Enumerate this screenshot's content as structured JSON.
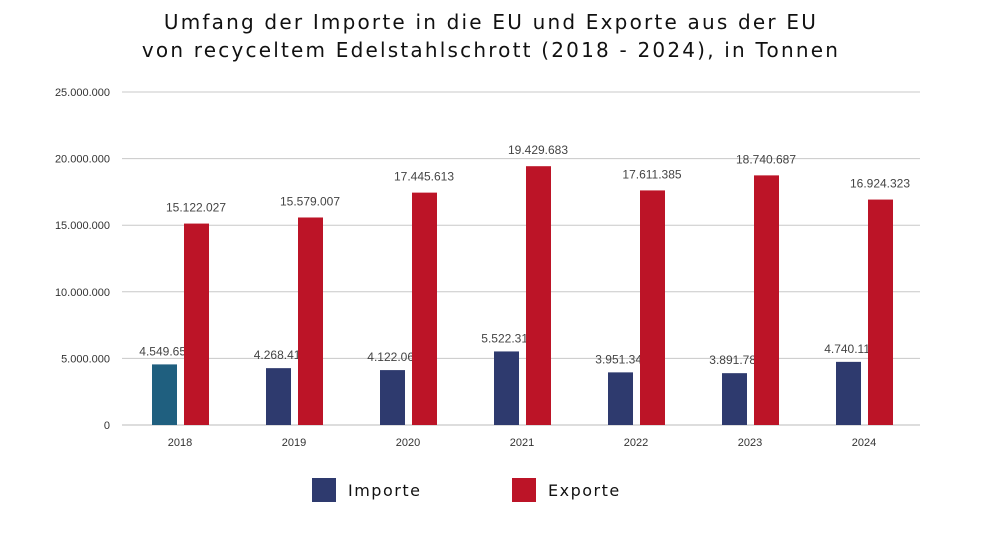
{
  "chart_data": {
    "type": "bar",
    "title_line1": "Umfang der Importe in die EU und Exporte aus der EU",
    "title_line2": "von recyceltem Edelstahlschrott (2018 - 2024), in Tonnen",
    "categories": [
      "2018",
      "2019",
      "2020",
      "2021",
      "2022",
      "2023",
      "2024"
    ],
    "series": [
      {
        "name": "Importe",
        "color": "#2e3a6e",
        "values": [
          4549656,
          4268411,
          4122061,
          5522316,
          3951347,
          3891780,
          4740111
        ],
        "labels": [
          "4.549.656",
          "4.268.411",
          "4.122.061",
          "5.522.316",
          "3.951.347",
          "3.891.780",
          "4.740.111"
        ]
      },
      {
        "name": "Exporte",
        "color": "#bc1427",
        "values": [
          15122027,
          15579007,
          17445613,
          19429683,
          17611385,
          18740687,
          16924323
        ],
        "labels": [
          "15.122.027",
          "15.579.007",
          "17.445.613",
          "19.429.683",
          "17.611.385",
          "18.740.687",
          "16.924.323"
        ]
      }
    ],
    "first_bar_color": "#1f5f7f",
    "ylim": [
      0,
      25000000
    ],
    "yticks": [
      0,
      5000000,
      10000000,
      15000000,
      20000000,
      25000000
    ],
    "ytick_labels": [
      "0",
      "5.000.000",
      "10.000.000",
      "15.000.000",
      "20.000.000",
      "25.000.000"
    ],
    "grid": true,
    "legend_position": "bottom"
  }
}
